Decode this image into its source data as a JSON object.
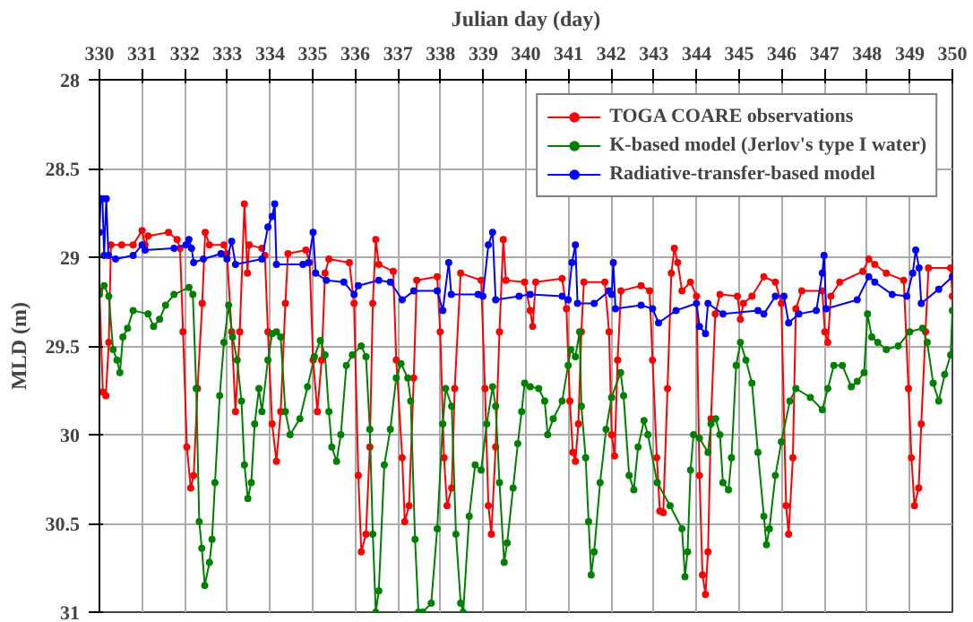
{
  "chart_data": {
    "type": "line",
    "xlabel": "Julian day (day)",
    "ylabel": "MLD (m)",
    "xlim": [
      330,
      350
    ],
    "ylim": [
      31,
      28
    ],
    "xticks": [
      330,
      331,
      332,
      333,
      334,
      335,
      336,
      337,
      338,
      339,
      340,
      341,
      342,
      343,
      344,
      345,
      346,
      347,
      348,
      349,
      350
    ],
    "yticks": [
      28,
      28.5,
      29,
      29.5,
      30,
      30.5,
      31
    ],
    "grid": true,
    "legend": "top right",
    "marker": "circle",
    "line_style": "solid",
    "series": [
      {
        "name": "TOGA COARE observations",
        "color": "#ff0000",
        "x": [
          330.0,
          330.08,
          330.15,
          330.22,
          330.27,
          330.52,
          330.79,
          331.0,
          331.07,
          331.14,
          331.62,
          331.82,
          331.89,
          331.96,
          332.05,
          332.14,
          332.21,
          332.3,
          332.41,
          332.48,
          332.58,
          332.92,
          332.99,
          333.1,
          333.19,
          333.29,
          333.4,
          333.47,
          333.51,
          333.81,
          333.88,
          333.95,
          334.05,
          334.15,
          334.25,
          334.36,
          334.42,
          334.84,
          334.93,
          335.01,
          335.11,
          335.21,
          335.29,
          335.38,
          335.86,
          335.97,
          336.07,
          336.14,
          336.25,
          336.34,
          336.41,
          336.48,
          336.55,
          336.89,
          336.96,
          337.1,
          337.16,
          337.26,
          337.37,
          337.44,
          337.92,
          337.99,
          338.08,
          338.15,
          338.26,
          338.33,
          338.47,
          338.95,
          339.04,
          339.12,
          339.19,
          339.29,
          339.38,
          339.47,
          339.53,
          339.97,
          340.1,
          340.16,
          340.23,
          340.85,
          340.95,
          341.03,
          341.1,
          341.16,
          341.23,
          341.3,
          341.36,
          341.85,
          341.95,
          342.01,
          342.08,
          342.15,
          342.23,
          342.7,
          342.9,
          342.97,
          343.07,
          343.14,
          343.22,
          343.32,
          343.41,
          343.48,
          343.56,
          343.66,
          343.86,
          344.0,
          344.07,
          344.14,
          344.21,
          344.27,
          344.34,
          344.44,
          344.55,
          344.96,
          345.03,
          345.1,
          345.3,
          345.58,
          345.85,
          345.99,
          346.1,
          346.16,
          346.26,
          346.33,
          346.47,
          346.95,
          347.01,
          347.08,
          347.15,
          347.36,
          347.9,
          348.04,
          348.18,
          348.45,
          348.86,
          348.97,
          349.04,
          349.11,
          349.21,
          349.27,
          349.37,
          349.44,
          349.96,
          350.0
        ],
        "values": [
          29.19,
          29.76,
          29.78,
          29.48,
          28.93,
          28.93,
          28.93,
          28.85,
          28.93,
          28.88,
          28.86,
          28.9,
          28.95,
          29.42,
          30.07,
          30.3,
          30.23,
          29.74,
          29.26,
          28.86,
          28.93,
          28.93,
          28.98,
          29.42,
          29.87,
          29.42,
          28.7,
          29.09,
          28.93,
          28.95,
          28.99,
          29.42,
          29.94,
          30.15,
          29.87,
          29.26,
          28.98,
          28.96,
          29.03,
          29.58,
          29.87,
          29.58,
          29.09,
          29.01,
          29.03,
          29.26,
          30.23,
          30.66,
          30.56,
          30.07,
          29.26,
          28.9,
          29.04,
          29.08,
          29.58,
          30.13,
          30.49,
          30.4,
          29.68,
          29.13,
          29.11,
          29.42,
          30.13,
          30.4,
          30.3,
          29.74,
          29.09,
          29.13,
          29.74,
          30.4,
          30.56,
          30.07,
          29.42,
          28.9,
          29.13,
          29.14,
          29.3,
          29.39,
          29.14,
          29.12,
          29.29,
          29.81,
          30.1,
          30.15,
          29.94,
          29.42,
          29.14,
          29.14,
          29.42,
          30.0,
          30.12,
          29.58,
          29.19,
          29.16,
          29.19,
          29.58,
          30.13,
          30.43,
          30.44,
          29.74,
          29.09,
          28.95,
          29.03,
          29.19,
          29.14,
          29.22,
          30.23,
          30.79,
          30.9,
          30.66,
          29.91,
          29.32,
          29.21,
          29.22,
          29.35,
          29.26,
          29.22,
          29.11,
          29.14,
          29.26,
          30.4,
          30.56,
          30.13,
          29.29,
          29.19,
          29.19,
          29.42,
          29.48,
          29.22,
          29.14,
          29.08,
          29.01,
          29.04,
          29.09,
          29.13,
          29.74,
          30.13,
          30.4,
          30.3,
          29.94,
          29.42,
          29.06,
          29.06,
          29.22
        ]
      },
      {
        "name": "K-based model (Jerlov's type I water)",
        "color": "#008000",
        "x": [
          330.0,
          330.11,
          330.22,
          330.32,
          330.41,
          330.48,
          330.55,
          330.66,
          330.79,
          331.14,
          331.27,
          331.41,
          331.55,
          331.75,
          332.1,
          332.19,
          332.27,
          332.34,
          332.4,
          332.47,
          332.58,
          332.64,
          332.71,
          332.82,
          332.92,
          333.03,
          333.12,
          333.23,
          333.33,
          333.4,
          333.48,
          333.56,
          333.64,
          333.74,
          333.81,
          333.95,
          334.05,
          334.15,
          334.25,
          334.36,
          334.47,
          334.7,
          334.88,
          335.04,
          335.18,
          335.29,
          335.38,
          335.45,
          335.56,
          335.66,
          335.79,
          335.93,
          336.14,
          336.25,
          336.34,
          336.41,
          336.48,
          336.55,
          336.68,
          336.82,
          336.96,
          337.07,
          337.23,
          337.3,
          337.4,
          337.48,
          337.58,
          337.78,
          337.92,
          338.05,
          338.12,
          338.26,
          338.36,
          338.47,
          338.53,
          338.67,
          338.81,
          338.95,
          339.08,
          339.22,
          339.29,
          339.38,
          339.49,
          339.56,
          339.7,
          339.81,
          339.9,
          339.97,
          340.1,
          340.3,
          340.44,
          340.51,
          340.64,
          340.85,
          340.99,
          341.05,
          341.16,
          341.26,
          341.3,
          341.4,
          341.47,
          341.53,
          341.6,
          341.74,
          341.88,
          342.01,
          342.22,
          342.29,
          342.42,
          342.53,
          342.63,
          342.77,
          342.86,
          343.08,
          343.38,
          343.66,
          343.73,
          343.79,
          343.86,
          343.93,
          344.07,
          344.27,
          344.34,
          344.45,
          344.55,
          344.62,
          344.75,
          344.82,
          344.93,
          345.03,
          345.16,
          345.3,
          345.44,
          345.58,
          345.64,
          345.71,
          345.85,
          345.99,
          346.19,
          346.33,
          346.67,
          346.95,
          347.08,
          347.22,
          347.42,
          347.63,
          347.77,
          347.93,
          348.01,
          348.11,
          348.25,
          348.45,
          348.73,
          349.0,
          349.3,
          349.41,
          349.55,
          349.68,
          349.82,
          349.96,
          350.0
        ],
        "values": [
          29.21,
          29.16,
          29.22,
          29.52,
          29.58,
          29.65,
          29.45,
          29.4,
          29.3,
          29.32,
          29.39,
          29.35,
          29.27,
          29.21,
          29.17,
          29.21,
          29.74,
          30.49,
          30.64,
          30.85,
          30.72,
          30.59,
          30.27,
          29.78,
          29.48,
          29.27,
          29.45,
          29.58,
          29.81,
          30.17,
          30.36,
          30.27,
          29.94,
          29.74,
          29.87,
          29.58,
          29.43,
          29.42,
          29.45,
          29.87,
          30.0,
          29.91,
          29.73,
          29.56,
          29.47,
          29.55,
          29.87,
          30.07,
          30.15,
          30.0,
          29.61,
          29.55,
          29.5,
          29.56,
          29.97,
          30.56,
          31.0,
          30.88,
          30.17,
          29.97,
          29.68,
          29.6,
          29.68,
          29.81,
          30.59,
          31.0,
          31.0,
          30.95,
          30.53,
          29.94,
          29.74,
          29.84,
          30.56,
          30.95,
          31.0,
          30.46,
          30.17,
          30.2,
          29.94,
          29.73,
          29.84,
          30.27,
          30.72,
          30.61,
          30.3,
          30.05,
          29.87,
          29.71,
          29.73,
          29.74,
          29.81,
          30.0,
          29.91,
          29.81,
          29.61,
          29.52,
          29.56,
          29.42,
          29.84,
          30.13,
          30.49,
          30.79,
          30.66,
          30.27,
          29.97,
          29.79,
          29.65,
          29.78,
          30.23,
          30.31,
          30.07,
          29.92,
          30.0,
          30.27,
          30.4,
          30.53,
          30.8,
          30.66,
          30.2,
          30.0,
          30.02,
          30.1,
          29.94,
          29.91,
          30.0,
          30.27,
          30.31,
          30.13,
          29.61,
          29.48,
          29.58,
          29.71,
          30.1,
          30.46,
          30.62,
          30.53,
          30.23,
          30.04,
          29.81,
          29.74,
          29.79,
          29.86,
          29.74,
          29.61,
          29.61,
          29.73,
          29.7,
          29.65,
          29.32,
          29.45,
          29.48,
          29.52,
          29.5,
          29.42,
          29.4,
          29.48,
          29.71,
          29.81,
          29.66,
          29.55,
          29.3
        ]
      },
      {
        "name": "Radiative-transfer-based model",
        "color": "#0000ff",
        "x": [
          330.0,
          330.03,
          330.07,
          330.11,
          330.16,
          330.21,
          330.38,
          330.79,
          331.0,
          331.07,
          331.75,
          332.03,
          332.1,
          332.16,
          332.21,
          332.44,
          332.85,
          332.99,
          333.1,
          333.19,
          333.81,
          333.95,
          334.05,
          334.11,
          334.15,
          334.77,
          334.9,
          335.01,
          335.07,
          335.32,
          335.73,
          335.97,
          336.07,
          336.55,
          336.82,
          337.1,
          337.37,
          337.92,
          338.05,
          338.19,
          338.25,
          338.88,
          338.99,
          339.12,
          339.22,
          339.29,
          339.84,
          340.1,
          340.85,
          340.99,
          341.08,
          341.16,
          341.21,
          341.6,
          341.95,
          342.01,
          342.05,
          342.1,
          342.7,
          342.97,
          343.11,
          343.52,
          344.0,
          344.07,
          344.21,
          344.27,
          344.62,
          345.44,
          345.58,
          345.85,
          346.05,
          346.16,
          346.4,
          346.81,
          346.95,
          346.99,
          347.04,
          347.77,
          348.04,
          348.18,
          348.59,
          348.93,
          349.07,
          349.14,
          349.22,
          349.27,
          349.68,
          350.0
        ],
        "values": [
          28.86,
          28.67,
          28.67,
          28.99,
          28.67,
          28.99,
          29.01,
          28.99,
          28.93,
          28.96,
          28.95,
          28.93,
          28.9,
          28.95,
          29.03,
          29.01,
          28.98,
          29.01,
          28.91,
          29.04,
          29.01,
          28.83,
          28.77,
          28.7,
          29.04,
          29.04,
          29.03,
          28.86,
          29.09,
          29.13,
          29.14,
          29.21,
          29.16,
          29.13,
          29.14,
          29.24,
          29.19,
          29.19,
          29.3,
          29.03,
          29.21,
          29.21,
          29.22,
          28.93,
          28.86,
          29.24,
          29.22,
          29.21,
          29.22,
          29.24,
          29.03,
          28.93,
          29.26,
          29.26,
          29.19,
          29.21,
          29.03,
          29.29,
          29.27,
          29.29,
          29.37,
          29.3,
          29.26,
          29.39,
          29.43,
          29.26,
          29.32,
          29.3,
          29.32,
          29.22,
          29.22,
          29.37,
          29.32,
          29.3,
          29.09,
          28.99,
          29.29,
          29.24,
          29.11,
          29.14,
          29.21,
          29.22,
          29.09,
          28.96,
          29.06,
          29.26,
          29.18,
          29.11
        ]
      }
    ]
  }
}
